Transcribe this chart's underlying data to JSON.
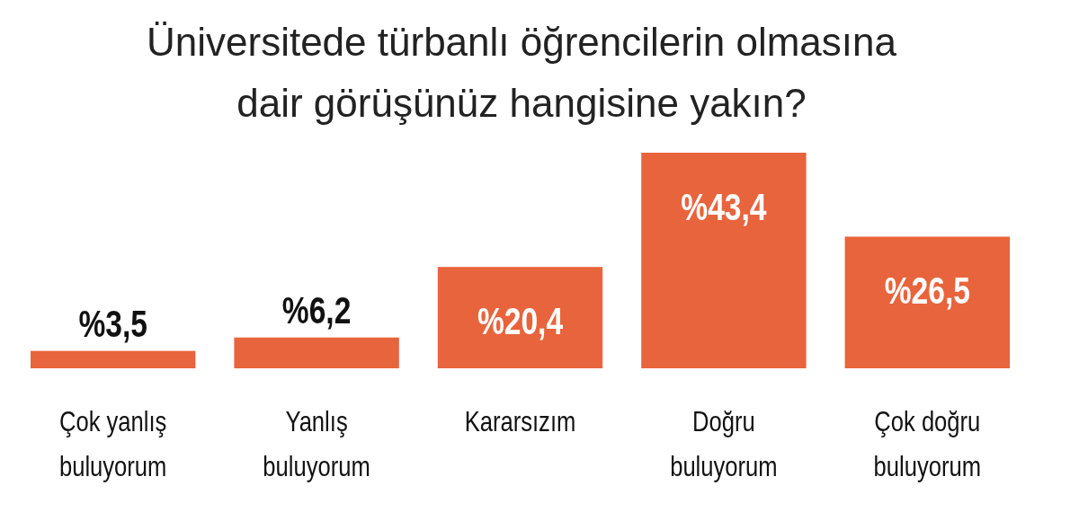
{
  "chart_data": {
    "type": "bar",
    "title": "Üniversitede türbanlı öğrencilerin olmasına dair görüşünüz hangisine yakın?",
    "categories": [
      "Çok yanlış buluyorum",
      "Yanlış buluyorum",
      "Kararsızım",
      "Doğru buluyorum",
      "Çok doğru buluyorum"
    ],
    "values": [
      3.5,
      6.2,
      20.4,
      43.4,
      26.5
    ],
    "value_labels": [
      "%3,5",
      "%6,2",
      "%20,4",
      "%43,4",
      "%26,5"
    ],
    "color": "#e8643c"
  }
}
